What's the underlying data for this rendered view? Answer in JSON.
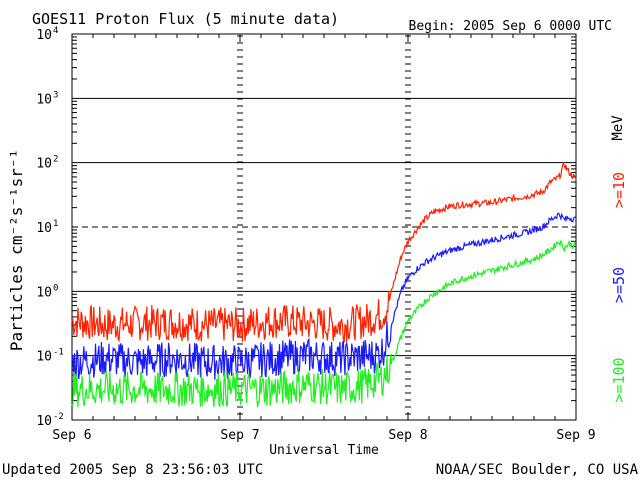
{
  "chart_data": {
    "type": "line",
    "title": "GOES11 Proton Flux (5 minute data)",
    "begin_label": "Begin: 2005 Sep 6 0000 UTC",
    "xlabel": "Universal Time",
    "ylabel": "Particles cm⁻²s⁻¹sr⁻¹",
    "y_scale": "log",
    "ylim": [
      0.01,
      10000
    ],
    "xlim_days": [
      0,
      3
    ],
    "x_tick_labels": [
      "Sep 6",
      "Sep 7",
      "Sep 8",
      "Sep 9"
    ],
    "y_tick_labels": [
      {
        "base": "10",
        "exp": "-2"
      },
      {
        "base": "10",
        "exp": "-1"
      },
      {
        "base": "10",
        "exp": "0"
      },
      {
        "base": "10",
        "exp": "1"
      },
      {
        "base": "10",
        "exp": "2"
      },
      {
        "base": "10",
        "exp": "3"
      },
      {
        "base": "10",
        "exp": "4"
      }
    ],
    "alert_threshold": 10,
    "energy_unit": "MeV",
    "series": [
      {
        "name": ">=10",
        "color": "#ff2200",
        "x_days": [
          0.0,
          0.2,
          0.4,
          0.6,
          0.8,
          1.0,
          1.2,
          1.4,
          1.6,
          1.75,
          1.8,
          1.85,
          1.88,
          1.92,
          1.96,
          2.0,
          2.05,
          2.1,
          2.15,
          2.2,
          2.25,
          2.3,
          2.4,
          2.5,
          2.6,
          2.7,
          2.75,
          2.8,
          2.85,
          2.9,
          2.93,
          2.96,
          3.0
        ],
        "values": [
          0.35,
          0.3,
          0.32,
          0.33,
          0.3,
          0.3,
          0.35,
          0.32,
          0.3,
          0.35,
          0.4,
          0.45,
          0.6,
          1.5,
          3.5,
          6.0,
          9.0,
          13.0,
          17.0,
          19.0,
          21.0,
          22.0,
          23.0,
          24.0,
          27.0,
          30.0,
          32.0,
          35.0,
          50.0,
          60.0,
          95.0,
          70.0,
          55.0
        ]
      },
      {
        "name": ">=50",
        "color": "#1a1aff",
        "x_days": [
          0.0,
          0.2,
          0.4,
          0.6,
          0.8,
          1.0,
          1.2,
          1.4,
          1.6,
          1.75,
          1.8,
          1.85,
          1.88,
          1.92,
          1.96,
          2.0,
          2.05,
          2.1,
          2.15,
          2.2,
          2.25,
          2.3,
          2.4,
          2.5,
          2.6,
          2.7,
          2.75,
          2.8,
          2.85,
          2.9,
          2.93,
          2.96,
          3.0
        ],
        "values": [
          0.08,
          0.09,
          0.08,
          0.09,
          0.08,
          0.08,
          0.09,
          0.1,
          0.09,
          0.1,
          0.1,
          0.12,
          0.2,
          0.45,
          1.0,
          1.6,
          2.2,
          2.8,
          3.3,
          3.8,
          4.3,
          4.7,
          5.5,
          6.3,
          7.2,
          8.2,
          9.0,
          10.0,
          13.0,
          16.0,
          13.0,
          14.0,
          13.0
        ]
      },
      {
        "name": ">=100",
        "color": "#22ee22",
        "x_days": [
          0.0,
          0.2,
          0.4,
          0.6,
          0.8,
          1.0,
          1.2,
          1.4,
          1.6,
          1.75,
          1.8,
          1.85,
          1.88,
          1.92,
          1.96,
          2.0,
          2.05,
          2.1,
          2.15,
          2.2,
          2.25,
          2.3,
          2.4,
          2.5,
          2.6,
          2.7,
          2.75,
          2.8,
          2.85,
          2.9,
          2.93,
          2.96,
          3.0
        ],
        "values": [
          0.03,
          0.03,
          0.03,
          0.03,
          0.03,
          0.03,
          0.03,
          0.035,
          0.03,
          0.035,
          0.04,
          0.045,
          0.06,
          0.1,
          0.2,
          0.35,
          0.5,
          0.7,
          0.9,
          1.1,
          1.3,
          1.5,
          1.8,
          2.1,
          2.5,
          2.9,
          3.2,
          3.6,
          4.5,
          6.0,
          4.8,
          5.5,
          5.0
        ]
      }
    ],
    "legend_placement": "right, rotated vertical"
  },
  "footer": {
    "updated": "Updated 2005 Sep  8 23:56:03 UTC",
    "credit": "NOAA/SEC Boulder, CO USA"
  }
}
